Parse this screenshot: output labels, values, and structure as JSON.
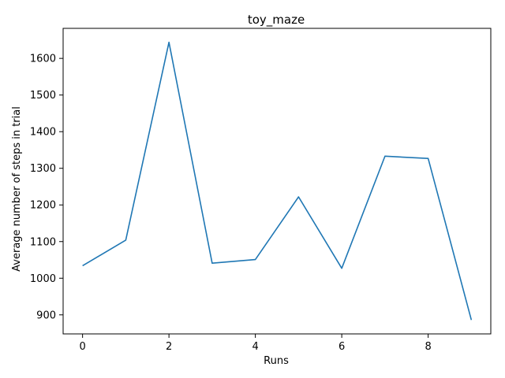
{
  "chart_data": {
    "type": "line",
    "title": "toy_maze",
    "xlabel": "Runs",
    "ylabel": "Average number of steps in trial",
    "xlim": [
      -0.45,
      9.45
    ],
    "ylim": [
      848,
      1682
    ],
    "xticks": [
      0,
      2,
      4,
      6,
      8
    ],
    "yticks": [
      900,
      1000,
      1100,
      1200,
      1300,
      1400,
      1500,
      1600
    ],
    "grid": false,
    "series": [
      {
        "color": "#1f77b4",
        "x": [
          0,
          1,
          2,
          3,
          4,
          5,
          6,
          7,
          8,
          9
        ],
        "y": [
          1034,
          1104,
          1644,
          1041,
          1051,
          1222,
          1027,
          1333,
          1327,
          886
        ]
      }
    ]
  }
}
